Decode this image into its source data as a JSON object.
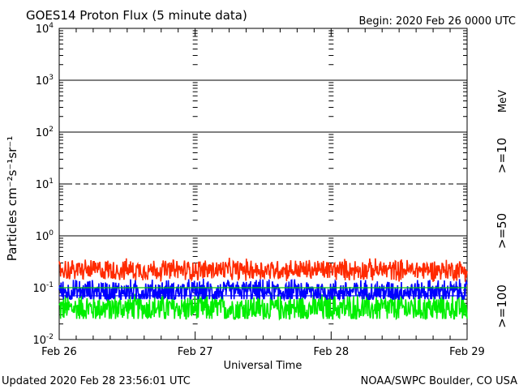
{
  "chart_data": {
    "type": "line",
    "title": "GOES14 Proton Flux (5 minute data)",
    "begin_label": "Begin: 2020 Feb 26 0000 UTC",
    "xlabel": "Universal Time",
    "ylabel": "Particles cm⁻²s⁻¹sr⁻¹",
    "x_ticks": [
      "Feb 26",
      "Feb 27",
      "Feb 28",
      "Feb 29"
    ],
    "y_scale": "log",
    "ylim": [
      0.01,
      10000
    ],
    "y_ticks": [
      {
        "value": 0.01,
        "base": "10",
        "exp": "-2"
      },
      {
        "value": 0.1,
        "base": "10",
        "exp": "-1"
      },
      {
        "value": 1,
        "base": "10",
        "exp": "0"
      },
      {
        "value": 10,
        "base": "10",
        "exp": "1"
      },
      {
        "value": 100,
        "base": "10",
        "exp": "2"
      },
      {
        "value": 1000,
        "base": "10",
        "exp": "3"
      },
      {
        "value": 10000,
        "base": "10",
        "exp": "4"
      }
    ],
    "threshold_lines": [
      {
        "value": 1,
        "style": "solid"
      },
      {
        "value": 10,
        "style": "dashed"
      },
      {
        "value": 100,
        "style": "solid"
      },
      {
        "value": 1000,
        "style": "solid"
      }
    ],
    "reference_lines": [
      {
        "value": 0.1,
        "color": "#00cc00"
      },
      {
        "value": 0.07,
        "color": "#0000ff"
      }
    ],
    "series_unit": "MeV",
    "series": [
      {
        "name": ">=10",
        "color": "#ff2a00",
        "median": 0.22,
        "spread": 0.22,
        "typical_range": [
          0.13,
          0.45
        ]
      },
      {
        "name": ">=50",
        "color": "#0000ff",
        "median": 0.085,
        "spread": 0.24,
        "typical_range": [
          0.06,
          0.18
        ]
      },
      {
        "name": ">=100",
        "color": "#00ee00",
        "median": 0.04,
        "spread": 0.3,
        "typical_range": [
          0.025,
          0.12
        ]
      }
    ]
  },
  "footer": {
    "updated": "Updated 2020 Feb 28 23:56:01 UTC",
    "credit": "NOAA/SWPC Boulder, CO USA"
  }
}
